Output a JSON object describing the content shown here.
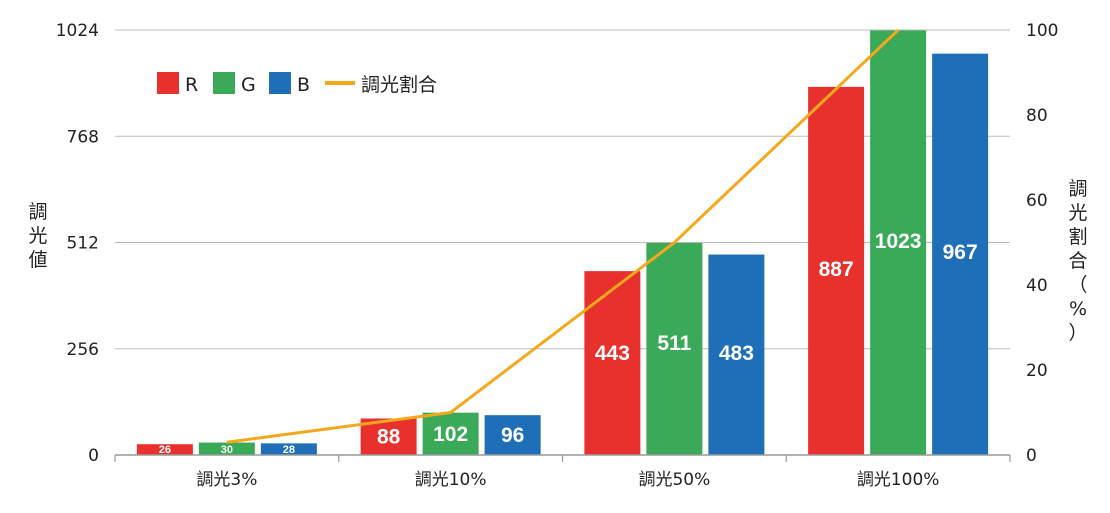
{
  "chart_data": {
    "type": "bar",
    "categories": [
      "調光3%",
      "調光10%",
      "調光50%",
      "調光100%"
    ],
    "series": [
      {
        "name": "R",
        "color": "#e8302c",
        "values": [
          26,
          88,
          443,
          887
        ]
      },
      {
        "name": "G",
        "color": "#3aaa59",
        "values": [
          30,
          102,
          511,
          1023
        ]
      },
      {
        "name": "B",
        "color": "#1f6fb8",
        "values": [
          28,
          96,
          483,
          967
        ]
      }
    ],
    "line_series": {
      "name": "調光割合",
      "color": "#f5a81c",
      "values": [
        3,
        10,
        50,
        100
      ]
    },
    "ylabel": "調光値",
    "y2label": "調光割合（%）",
    "ylim": [
      0,
      1024
    ],
    "y2lim": [
      0,
      100
    ],
    "yticks": [
      0,
      256,
      512,
      768,
      1024
    ],
    "y2ticks": [
      0,
      20,
      40,
      60,
      80,
      100
    ],
    "grid": true,
    "legend_position": "top-left"
  }
}
